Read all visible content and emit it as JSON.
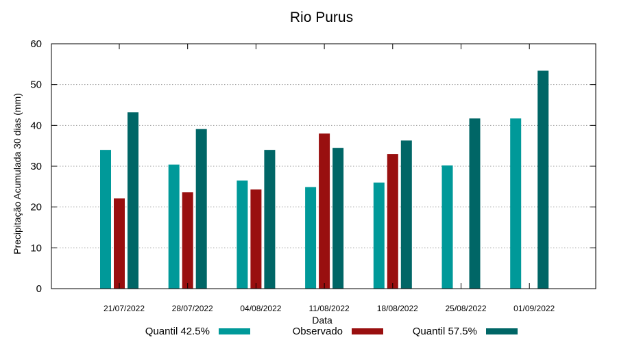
{
  "chart_data": {
    "type": "bar",
    "title": "Rio Purus",
    "xlabel": "Data",
    "ylabel": "Precipitação Acumulada 30 dias (mm)",
    "ylim": [
      0,
      60
    ],
    "yticks": [
      0,
      10,
      20,
      30,
      40,
      50,
      60
    ],
    "grid": true,
    "legend_position": "bottom",
    "categories": [
      "21/07/2022",
      "28/07/2022",
      "04/08/2022",
      "11/08/2022",
      "18/08/2022",
      "25/08/2022",
      "01/09/2022"
    ],
    "series": [
      {
        "name": "Quantil 42.5%",
        "color": "#009999",
        "values": [
          34.0,
          30.4,
          26.5,
          24.9,
          26.0,
          30.2,
          41.7
        ]
      },
      {
        "name": "Observado",
        "color": "#990f0f",
        "values": [
          22.1,
          23.6,
          24.3,
          38.0,
          33.0,
          null,
          null
        ]
      },
      {
        "name": "Quantil 57.5%",
        "color": "#006666",
        "values": [
          43.2,
          39.1,
          34.0,
          34.5,
          36.3,
          41.7,
          53.4
        ]
      }
    ]
  }
}
